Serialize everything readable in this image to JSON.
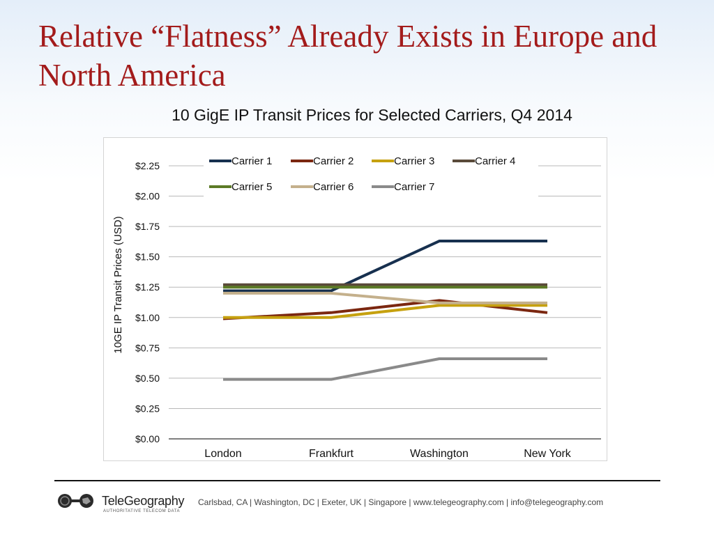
{
  "slide": {
    "title": "Relative “Flatness” Already Exists in Europe and North America"
  },
  "chart_data": {
    "type": "line",
    "title": "10 GigE IP Transit Prices for Selected Carriers, Q4 2014",
    "xlabel": "",
    "ylabel": "10GE IP Transit Prices (USD)",
    "categories": [
      "London",
      "Frankfurt",
      "Washington",
      "New York"
    ],
    "y_ticks": [
      "$0.00",
      "$0.25",
      "$0.50",
      "$0.75",
      "$1.00",
      "$1.25",
      "$1.50",
      "$1.75",
      "$2.00",
      "$2.25"
    ],
    "ylim": [
      0,
      2.25
    ],
    "grid": "horizontal",
    "legend_position": "top",
    "series": [
      {
        "name": "Carrier 1",
        "color": "#17304f",
        "values": [
          1.22,
          1.22,
          1.63,
          1.63
        ]
      },
      {
        "name": "Carrier 2",
        "color": "#7b2710",
        "values": [
          0.99,
          1.04,
          1.14,
          1.04
        ]
      },
      {
        "name": "Carrier 3",
        "color": "#c6a10f",
        "values": [
          1.0,
          1.0,
          1.1,
          1.1
        ]
      },
      {
        "name": "Carrier 4",
        "color": "#5a4a3a",
        "values": [
          1.27,
          1.27,
          1.27,
          1.27
        ]
      },
      {
        "name": "Carrier 5",
        "color": "#5c7a26",
        "values": [
          1.25,
          1.25,
          1.25,
          1.25
        ]
      },
      {
        "name": "Carrier 6",
        "color": "#c4b08c",
        "values": [
          1.2,
          1.2,
          1.12,
          1.12
        ]
      },
      {
        "name": "Carrier 7",
        "color": "#8a8a8a",
        "values": [
          0.49,
          0.49,
          0.66,
          0.66
        ]
      }
    ]
  },
  "footer": {
    "logo_name": "TeleGeography",
    "logo_tagline": "AUTHORITATIVE TELECOM DATA",
    "contact": "Carlsbad, CA | Washington, DC | Exeter, UK | Singapore | www.telegeography.com | info@telegeography.com"
  }
}
